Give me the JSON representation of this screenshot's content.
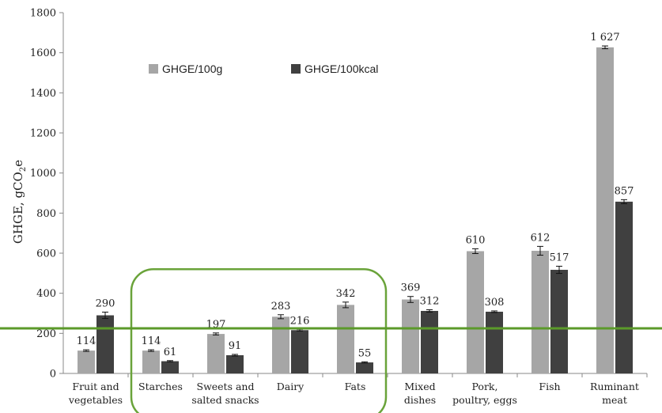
{
  "chart_data": {
    "type": "bar",
    "ylabel_main": "GHGE, gCO",
    "ylabel_sub": "2",
    "ylabel_tail": "e",
    "ylim": [
      0,
      1800
    ],
    "yticks": [
      "0",
      "200",
      "400",
      "600",
      "800",
      "1000",
      "1200",
      "1400",
      "1600",
      "1800"
    ],
    "ytick_values": [
      0,
      200,
      400,
      600,
      800,
      1000,
      1200,
      1400,
      1600,
      1800
    ],
    "categories": [
      [
        "Fruit and",
        "vegetables"
      ],
      [
        "Starches"
      ],
      [
        "Sweets and",
        "salted snacks"
      ],
      [
        "Dairy"
      ],
      [
        "Fats"
      ],
      [
        "Mixed",
        "dishes"
      ],
      [
        "Pork,",
        "poultry, eggs"
      ],
      [
        "Fish"
      ],
      [
        "Ruminant",
        "meat"
      ]
    ],
    "legend_position": "top-left",
    "series": [
      {
        "name": "GHGE/100g",
        "color": "#a6a6a6",
        "values": [
          114,
          114,
          197,
          283,
          342,
          369,
          610,
          612,
          1627
        ],
        "errors": [
          4,
          4,
          5,
          10,
          14,
          15,
          12,
          22,
          7
        ],
        "labels": [
          "114",
          "114",
          "197",
          "283",
          "342",
          "369",
          "610",
          "612",
          "1 627"
        ]
      },
      {
        "name": "GHGE/100kcal",
        "color": "#404040",
        "values": [
          290,
          61,
          91,
          216,
          55,
          312,
          308,
          517,
          857
        ],
        "errors": [
          16,
          3,
          4,
          4,
          3,
          6,
          4,
          18,
          10
        ],
        "labels": [
          "290",
          "61",
          "91",
          "216",
          "55",
          "312",
          "308",
          "517",
          "857"
        ]
      }
    ],
    "reference_line": {
      "value": 225,
      "color": "#5b9a2a"
    },
    "highlight_box": {
      "from_category": 1,
      "to_category": 4,
      "color": "#6aa33a"
    }
  }
}
